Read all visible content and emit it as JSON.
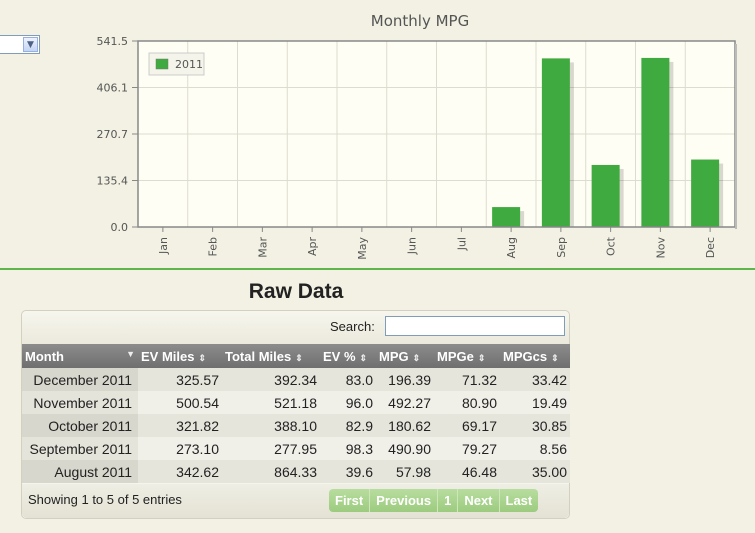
{
  "chart_data": {
    "type": "bar",
    "title": "Monthly MPG",
    "categories": [
      "Jan",
      "Feb",
      "Mar",
      "Apr",
      "May",
      "Jun",
      "Jul",
      "Aug",
      "Sep",
      "Oct",
      "Nov",
      "Dec"
    ],
    "series": [
      {
        "name": "2011",
        "values": [
          0,
          0,
          0,
          0,
          0,
          0,
          0,
          57.98,
          490.9,
          180.62,
          492.27,
          196.39
        ]
      }
    ],
    "yticks": [
      "0.0",
      "135.4",
      "270.7",
      "406.1",
      "541.5"
    ],
    "ylim": [
      0,
      541.5
    ],
    "legend_position": "top-left",
    "grid": true,
    "bar_color": "#3faa3f"
  },
  "raw_data": {
    "title": "Raw Data",
    "search_label": "Search:",
    "search_value": "",
    "columns": [
      "Month",
      "EV Miles",
      "Total Miles",
      "EV %",
      "MPG",
      "MPGe",
      "MPGcs"
    ],
    "rows": [
      [
        "December 2011",
        "325.57",
        "392.34",
        "83.0",
        "196.39",
        "71.32",
        "33.42"
      ],
      [
        "November 2011",
        "500.54",
        "521.18",
        "96.0",
        "492.27",
        "80.90",
        "19.49"
      ],
      [
        "October 2011",
        "321.82",
        "388.10",
        "82.9",
        "180.62",
        "69.17",
        "30.85"
      ],
      [
        "September 2011",
        "273.10",
        "277.95",
        "98.3",
        "490.90",
        "79.27",
        "8.56"
      ],
      [
        "August 2011",
        "342.62",
        "864.33",
        "39.6",
        "57.98",
        "46.48",
        "35.00"
      ]
    ],
    "info": "Showing 1 to 5 of 5 entries",
    "pager": {
      "first": "First",
      "previous": "Previous",
      "page": "1",
      "next": "Next",
      "last": "Last"
    }
  },
  "colors": {
    "accent_green": "#5db54c",
    "header_grey": "#7a7a7a"
  }
}
